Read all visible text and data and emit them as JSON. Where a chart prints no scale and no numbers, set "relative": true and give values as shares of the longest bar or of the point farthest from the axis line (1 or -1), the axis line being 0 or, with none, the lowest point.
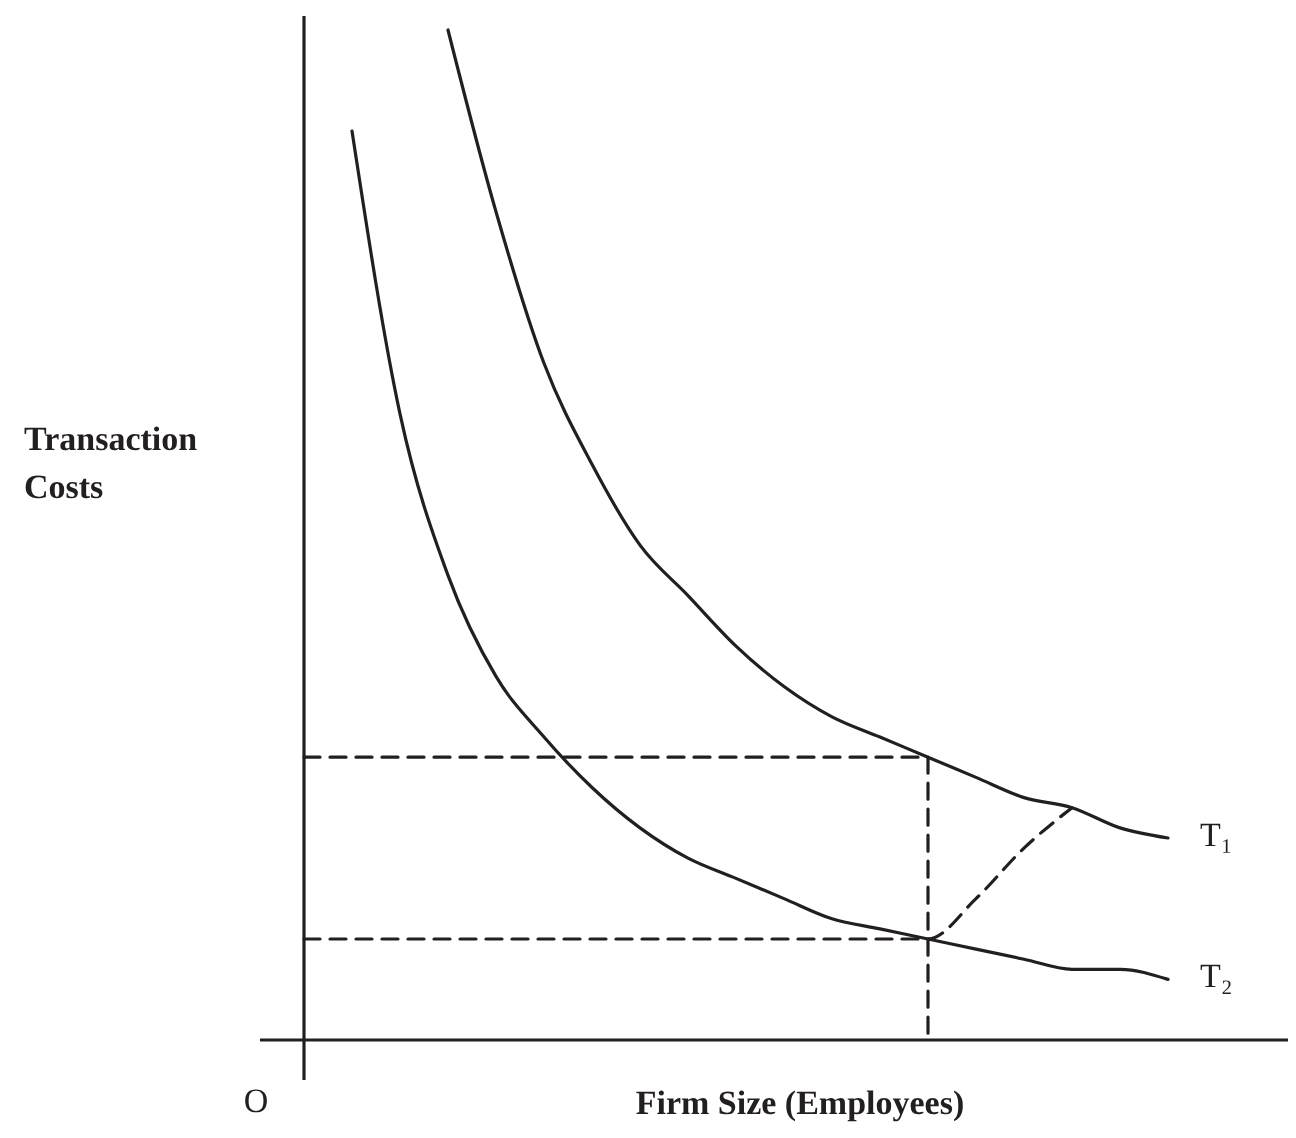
{
  "chart_data": {
    "type": "line",
    "relative": true,
    "ylabel": "Transaction Costs",
    "xlabel": "Firm Size (Employees)",
    "annotations": [
      "O"
    ],
    "marker": "none",
    "categories": [
      null,
      null,
      null,
      null,
      null,
      null,
      null,
      null,
      null,
      null,
      null,
      null,
      null,
      null,
      null,
      null,
      null,
      null,
      null,
      null,
      null
    ],
    "series": [
      {
        "name": "T₁",
        "color": "#231f20",
        "line_style": "solid",
        "values": [
          null,
          null,
          null,
          1.0,
          0.82,
          0.67,
          0.57,
          0.49,
          0.44,
          0.39,
          0.35,
          0.32,
          0.3,
          0.28,
          0.26,
          0.24,
          0.23,
          0.21,
          0.2,
          null,
          null
        ]
      },
      {
        "name": "T₂",
        "color": "#231f20",
        "line_style": "solid",
        "values": [
          null,
          0.9,
          0.62,
          0.46,
          0.36,
          0.3,
          0.25,
          0.21,
          0.18,
          0.16,
          0.14,
          0.12,
          0.11,
          0.1,
          0.09,
          0.08,
          0.07,
          0.07,
          0.06,
          null,
          null
        ]
      },
      {
        "type": "step",
        "color": "#231f20",
        "line_style": "dashed",
        "values": [
          0.28,
          0.28,
          0.28,
          0.28,
          0.28,
          0.28,
          0.28,
          0.28,
          0.28,
          0.28,
          0.28,
          0.28,
          0.28,
          0,
          null,
          null,
          null,
          null,
          null,
          null,
          null
        ]
      },
      {
        "color": "#231f20",
        "line_style": "dashed",
        "values": [
          0.1,
          0.1,
          0.1,
          0.1,
          0.1,
          0.1,
          0.1,
          0.1,
          0.1,
          0.1,
          0.1,
          0.1,
          0.1,
          0.1,
          0.14,
          0.19,
          0.23,
          null,
          null,
          null,
          null
        ]
      }
    ]
  }
}
